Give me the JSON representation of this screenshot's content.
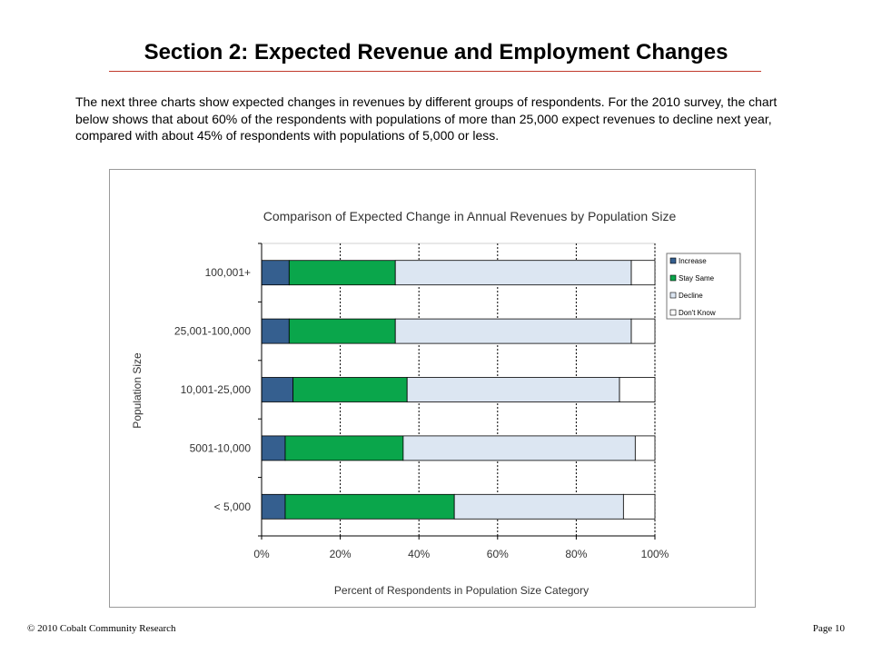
{
  "page": {
    "title": "Section 2: Expected Revenue and Employment Changes",
    "intro": "The next three charts show expected changes in revenues by different groups of respondents.  For the 2010 survey, the chart below shows that about 60% of the respondents with populations of more than 25,000 expect revenues to decline next year, compared with about 45% of respondents with populations of 5,000 or less.",
    "footer_left": "© 2010 Cobalt Community Research",
    "footer_right": "Page 10"
  },
  "chart_data": {
    "type": "bar",
    "orientation": "horizontal",
    "stacked": true,
    "title": "Comparison of Expected Change in Annual Revenues by Population Size",
    "xlabel": "Percent of Respondents in Population Size Category",
    "ylabel": "Population Size",
    "xlim": [
      0,
      100
    ],
    "x_ticks": [
      "0%",
      "20%",
      "40%",
      "60%",
      "80%",
      "100%"
    ],
    "categories": [
      "100,001+",
      "25,001-100,000",
      "10,001-25,000",
      "5001-10,000",
      "< 5,000"
    ],
    "series": [
      {
        "name": "Increase",
        "color": "#355f8f",
        "values": [
          7,
          7,
          8,
          6,
          6
        ]
      },
      {
        "name": "Stay Same",
        "color": "#0aa64b",
        "values": [
          27,
          27,
          29,
          30,
          43
        ]
      },
      {
        "name": "Decline",
        "color": "#dce6f2",
        "values": [
          60,
          60,
          54,
          59,
          43
        ]
      },
      {
        "name": "Don't Know",
        "color": "#ffffff",
        "values": [
          6,
          6,
          9,
          5,
          8
        ]
      }
    ],
    "gridlines": "vertical dashed",
    "legend_position": "right"
  }
}
